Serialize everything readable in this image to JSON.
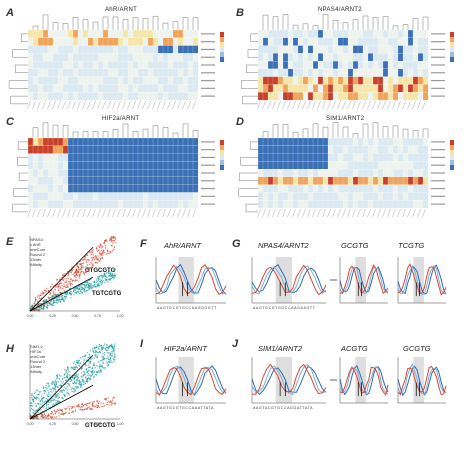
{
  "panels": {
    "A": {
      "letter": "A",
      "title": "AhR/ARNT"
    },
    "B": {
      "letter": "B",
      "title": "NPAS4/ARNT2"
    },
    "C": {
      "letter": "C",
      "title": "HIF2a/ARNT"
    },
    "D": {
      "letter": "D",
      "title": "SIM1/ARNT2"
    },
    "E": {
      "letter": "E",
      "title": "NPAS4 v AhR oneCore Round 2 13mer Affinity",
      "motif_top": "GTGCGTG",
      "motif_bottom": "TGTCGTG",
      "x_ticks": [
        "0.00",
        "0.25",
        "0.50",
        "0.75",
        "1.00"
      ]
    },
    "F": {
      "letter": "F",
      "title": "AhR/ARNT",
      "sequence": "AAGTGCGTGCCAAGGGGTT"
    },
    "G": {
      "letter": "G",
      "title": "NPAS4/ARNT2",
      "motif1": "GCGTG",
      "motif2": "TCGTG",
      "sequence": "AAGTGCGTGGCCAAGAAGTT"
    },
    "H": {
      "letter": "H",
      "title": "SIM1 v HIF2a oneCore Round 2 13mer Affinity",
      "motif_bottom": "GTGCGTG",
      "x_ticks": [
        "0.00",
        "0.25",
        "0.50",
        "0.75",
        "1.00"
      ]
    },
    "I": {
      "letter": "I",
      "title": "HIF2a/ARNT",
      "sequence": "AAGTGCGTGCCAAATTATA"
    },
    "J": {
      "letter": "J",
      "title": "SIM1/ARNT2",
      "motif1": "ACGTG",
      "motif2": "GCGTG",
      "sequence": "AAGTACGTGCCAGGATTATA"
    }
  },
  "colors": {
    "heat_blue": "#3b6fb6",
    "heat_light": "#dbe9f2",
    "heat_yellow": "#f5e6a8",
    "heat_orange": "#f0a35a",
    "heat_red": "#c8402a",
    "scatter_red": "#d9472f",
    "scatter_teal": "#1f9a9a",
    "line_blue": "#2f6bb5",
    "line_red": "#d84a33"
  }
}
